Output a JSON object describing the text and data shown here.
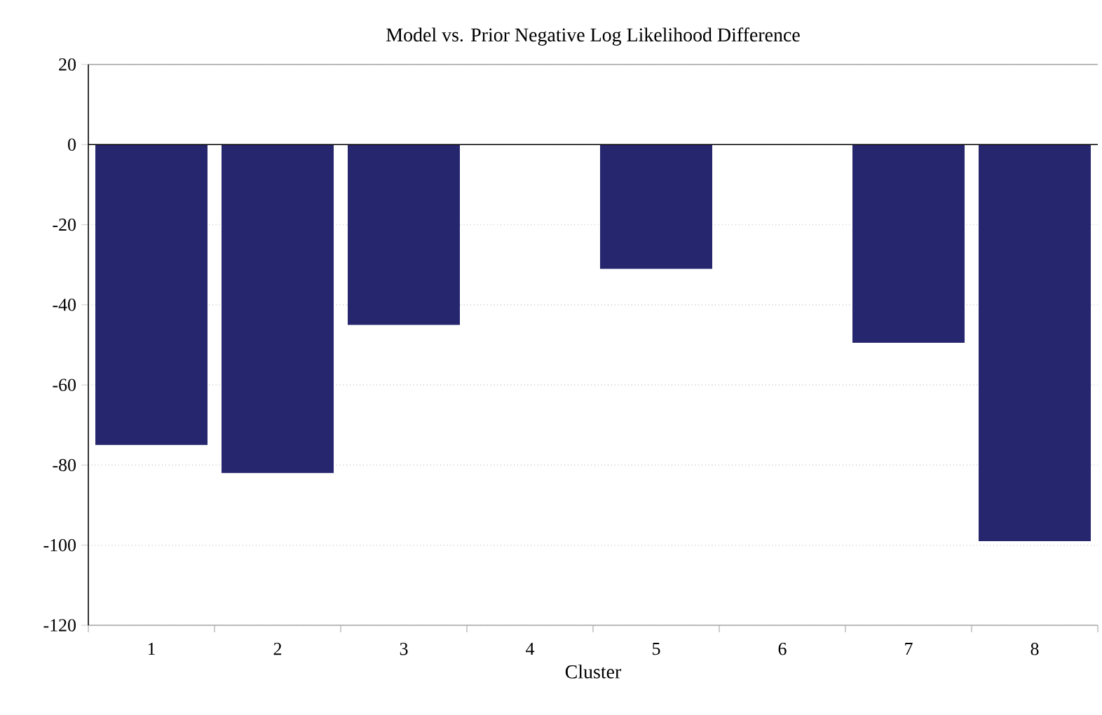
{
  "chart_data": {
    "type": "bar",
    "title": "Model vs. Prior Negative Log Likelihood Difference",
    "xlabel": "Cluster",
    "categories": [
      "1",
      "2",
      "3",
      "4",
      "5",
      "6",
      "7",
      "8"
    ],
    "values": [
      -75,
      -82,
      -45,
      0,
      -31,
      0,
      -49.5,
      -99
    ],
    "color": "#26266e",
    "ylim": [
      -120,
      20
    ],
    "yticks": [
      20,
      0,
      -20,
      -40,
      -60,
      -80,
      -100,
      -120
    ],
    "grid": "y"
  }
}
